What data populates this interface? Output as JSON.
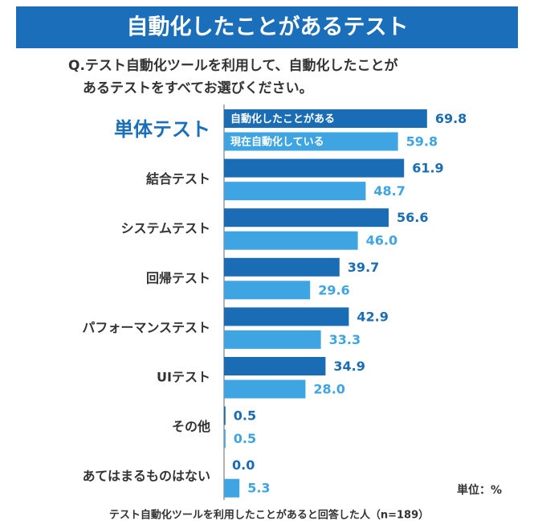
{
  "chart_data": {
    "type": "bar",
    "orientation": "horizontal",
    "title": "自動化したことがあるテスト",
    "question": [
      "Q.テスト自動化ツールを利用して、自動化したことが",
      "あるテストをすべてお選びください。"
    ],
    "categories": [
      "単体テスト",
      "結合テスト",
      "システムテスト",
      "回帰テスト",
      "パフォーマンステスト",
      "UIテスト",
      "その他",
      "あてはまるものはない"
    ],
    "series": [
      {
        "name": "自動化したことがある",
        "color": "#1a6cb4",
        "values": [
          69.8,
          61.9,
          56.6,
          39.7,
          42.9,
          34.9,
          0.5,
          0
        ],
        "value_labels": [
          "69.8",
          "61.9",
          "56.6",
          "39.7",
          "42.9",
          "34.9",
          "0.5",
          "0.0"
        ]
      },
      {
        "name": "現在自動化している",
        "color": "#3ea5e2",
        "values": [
          59.8,
          48.7,
          46,
          29.6,
          33.3,
          28,
          0.5,
          5.3
        ],
        "value_labels": [
          "59.8",
          "48.7",
          "46.0",
          "29.6",
          "33.3",
          "28.0",
          "0.5",
          "5.3"
        ]
      }
    ],
    "xlim": [
      0,
      90
    ],
    "unit": "単位：%",
    "note": "テスト自動化ツールを利用したことがあると回答した人（n=189）"
  }
}
